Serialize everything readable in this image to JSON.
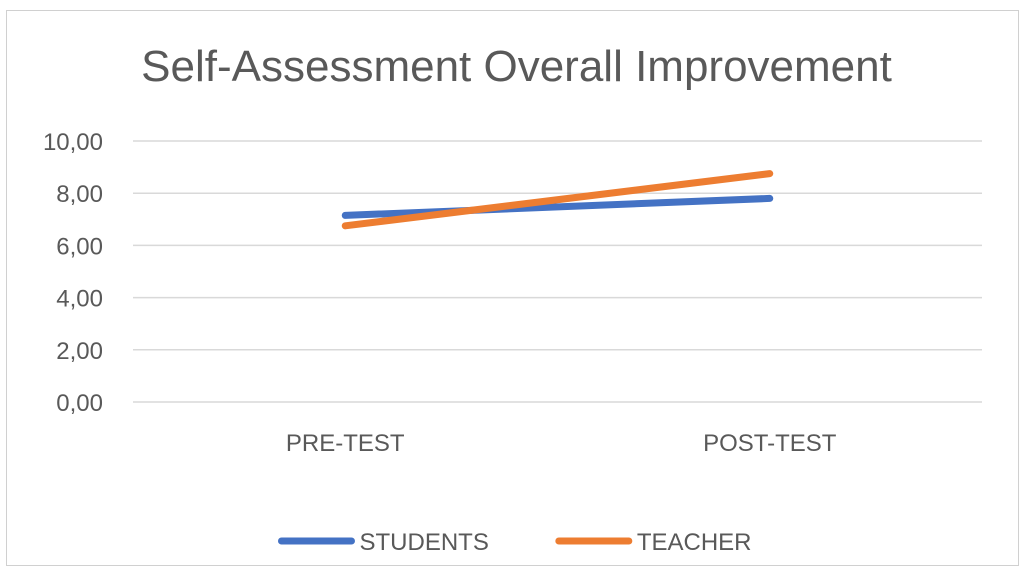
{
  "chart_data": {
    "type": "line",
    "title": "Self-Assessment Overall Improvement",
    "categories": [
      "PRE-TEST",
      "POST-TEST"
    ],
    "ylim": [
      0,
      10
    ],
    "yticks": [
      "0,00",
      "2,00",
      "4,00",
      "6,00",
      "8,00",
      "10,00"
    ],
    "grid": true,
    "legend_position": "bottom",
    "series": [
      {
        "name": "STUDENTS",
        "color": "#4472C4",
        "values": [
          7.15,
          7.8
        ]
      },
      {
        "name": "TEACHER",
        "color": "#ED7D31",
        "values": [
          6.75,
          8.75
        ]
      }
    ]
  }
}
